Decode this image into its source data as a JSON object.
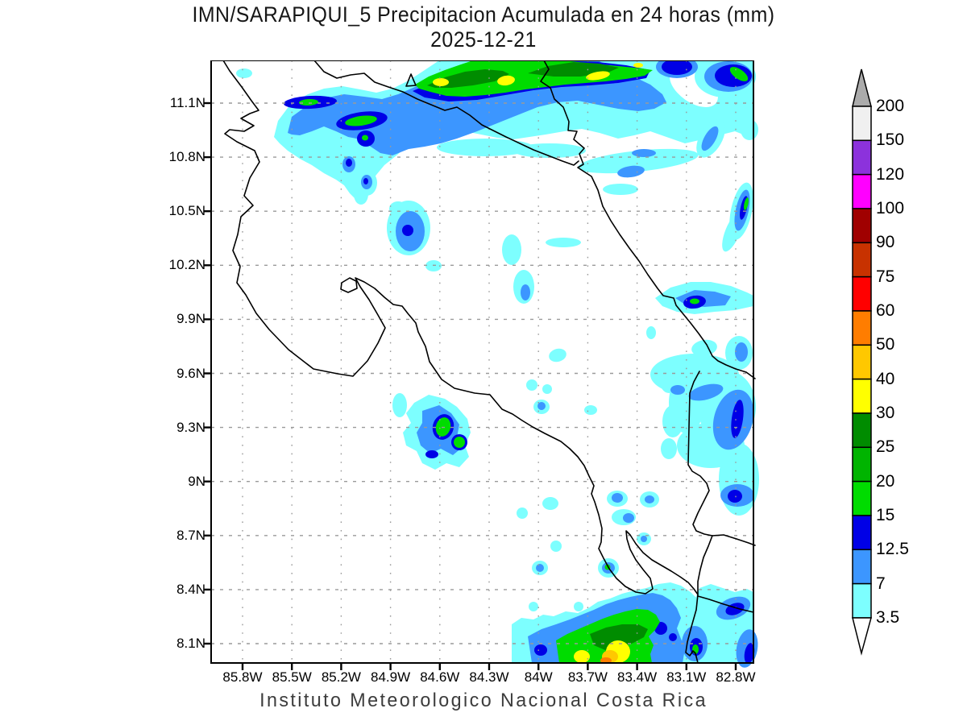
{
  "title": {
    "line1": "IMN/SARAPIQUI_5 Precipitacion Acumulada en 24 horas (mm)",
    "line2": "2025-12-21"
  },
  "footer": "Instituto Meteorologico Nacional Costa Rica",
  "map": {
    "y_tick_labels": [
      "11.1N",
      "10.8N",
      "10.5N",
      "10.2N",
      "9.9N",
      "9.6N",
      "9.3N",
      "9N",
      "8.7N",
      "8.4N",
      "8.1N"
    ],
    "x_tick_labels": [
      "85.8W",
      "85.5W",
      "85.2W",
      "84.9W",
      "84.6W",
      "84.3W",
      "84W",
      "83.7W",
      "83.4W",
      "83.1W",
      "82.8W"
    ]
  },
  "colorbar": {
    "unit": "mm",
    "levels": [
      "200",
      "150",
      "120",
      "100",
      "90",
      "75",
      "60",
      "50",
      "40",
      "30",
      "25",
      "20",
      "15",
      "12.5",
      "7",
      "3.5"
    ],
    "segment_colors": [
      "#F0F0F0",
      "#8C32DC",
      "#FF00FF",
      "#A00000",
      "#C83200",
      "#FF0000",
      "#FF7D00",
      "#FFC800",
      "#FFFF00",
      "#008C00",
      "#00B400",
      "#00DC00",
      "#0000E6",
      "#3C96FF",
      "#7DFFFF"
    ],
    "top_arrow_color": "#ABABAB",
    "bottom_arrow_color": "#FFFFFF"
  },
  "palette": {
    "cyan": "#7DFFFF",
    "blue": "#3C96FF",
    "dblue": "#0000E6",
    "green": "#00DC00",
    "dgreen": "#008C00",
    "mgreen": "#00B400",
    "yellow": "#FFFF00",
    "gold": "#FFC800",
    "orange": "#FF7D00",
    "grid": "#9a9a9a"
  }
}
